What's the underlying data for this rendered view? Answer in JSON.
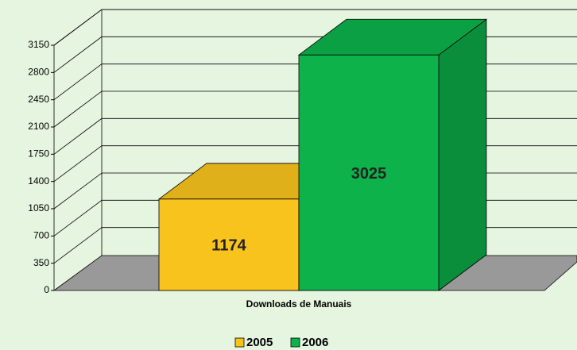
{
  "chart_data": {
    "type": "bar3d",
    "categories": [
      "Downloads de Manuais"
    ],
    "series": [
      {
        "name": "2005",
        "color": "#f9c31d",
        "values": [
          1174
        ]
      },
      {
        "name": "2006",
        "color": "#0db24b",
        "values": [
          3025
        ]
      }
    ],
    "ylim": [
      0,
      3150
    ],
    "yticks": [
      0,
      350,
      700,
      1050,
      1400,
      1750,
      2100,
      2450,
      2800,
      3150
    ],
    "grid": true,
    "legend": "bottom"
  }
}
